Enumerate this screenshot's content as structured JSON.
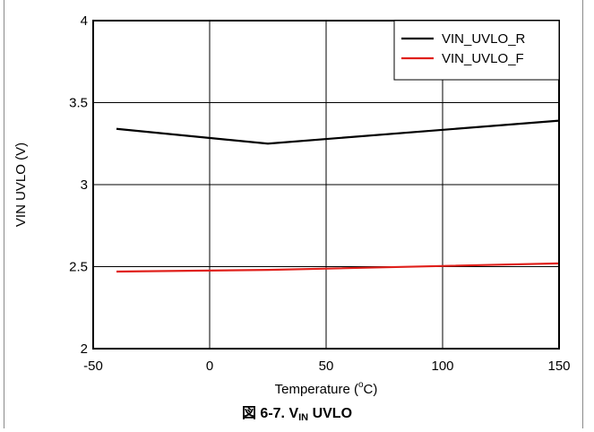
{
  "chart_data": {
    "type": "line",
    "title": "",
    "xlabel": "Temperature (",
    "xlabel_sup": "o",
    "xlabel_suffix": "C)",
    "ylabel": "VIN UVLO (V)",
    "xlim": [
      -50,
      150
    ],
    "ylim": [
      2,
      4
    ],
    "xticks": [
      "-50",
      "0",
      "50",
      "100",
      "150"
    ],
    "yticks": [
      "2",
      "2.5",
      "3",
      "3.5",
      "4"
    ],
    "grid": true,
    "legend_position": "top-right",
    "series": [
      {
        "name": "VIN_UVLO_R",
        "color": "#000000",
        "x": [
          -40,
          25,
          150
        ],
        "y": [
          3.34,
          3.25,
          3.39
        ]
      },
      {
        "name": "VIN_UVLO_F",
        "color": "#e0201b",
        "x": [
          -40,
          25,
          150
        ],
        "y": [
          2.47,
          2.48,
          2.52
        ]
      }
    ]
  },
  "caption": {
    "prefix": "図 6-7. V",
    "subscript": "IN",
    "suffix": " UVLO"
  }
}
